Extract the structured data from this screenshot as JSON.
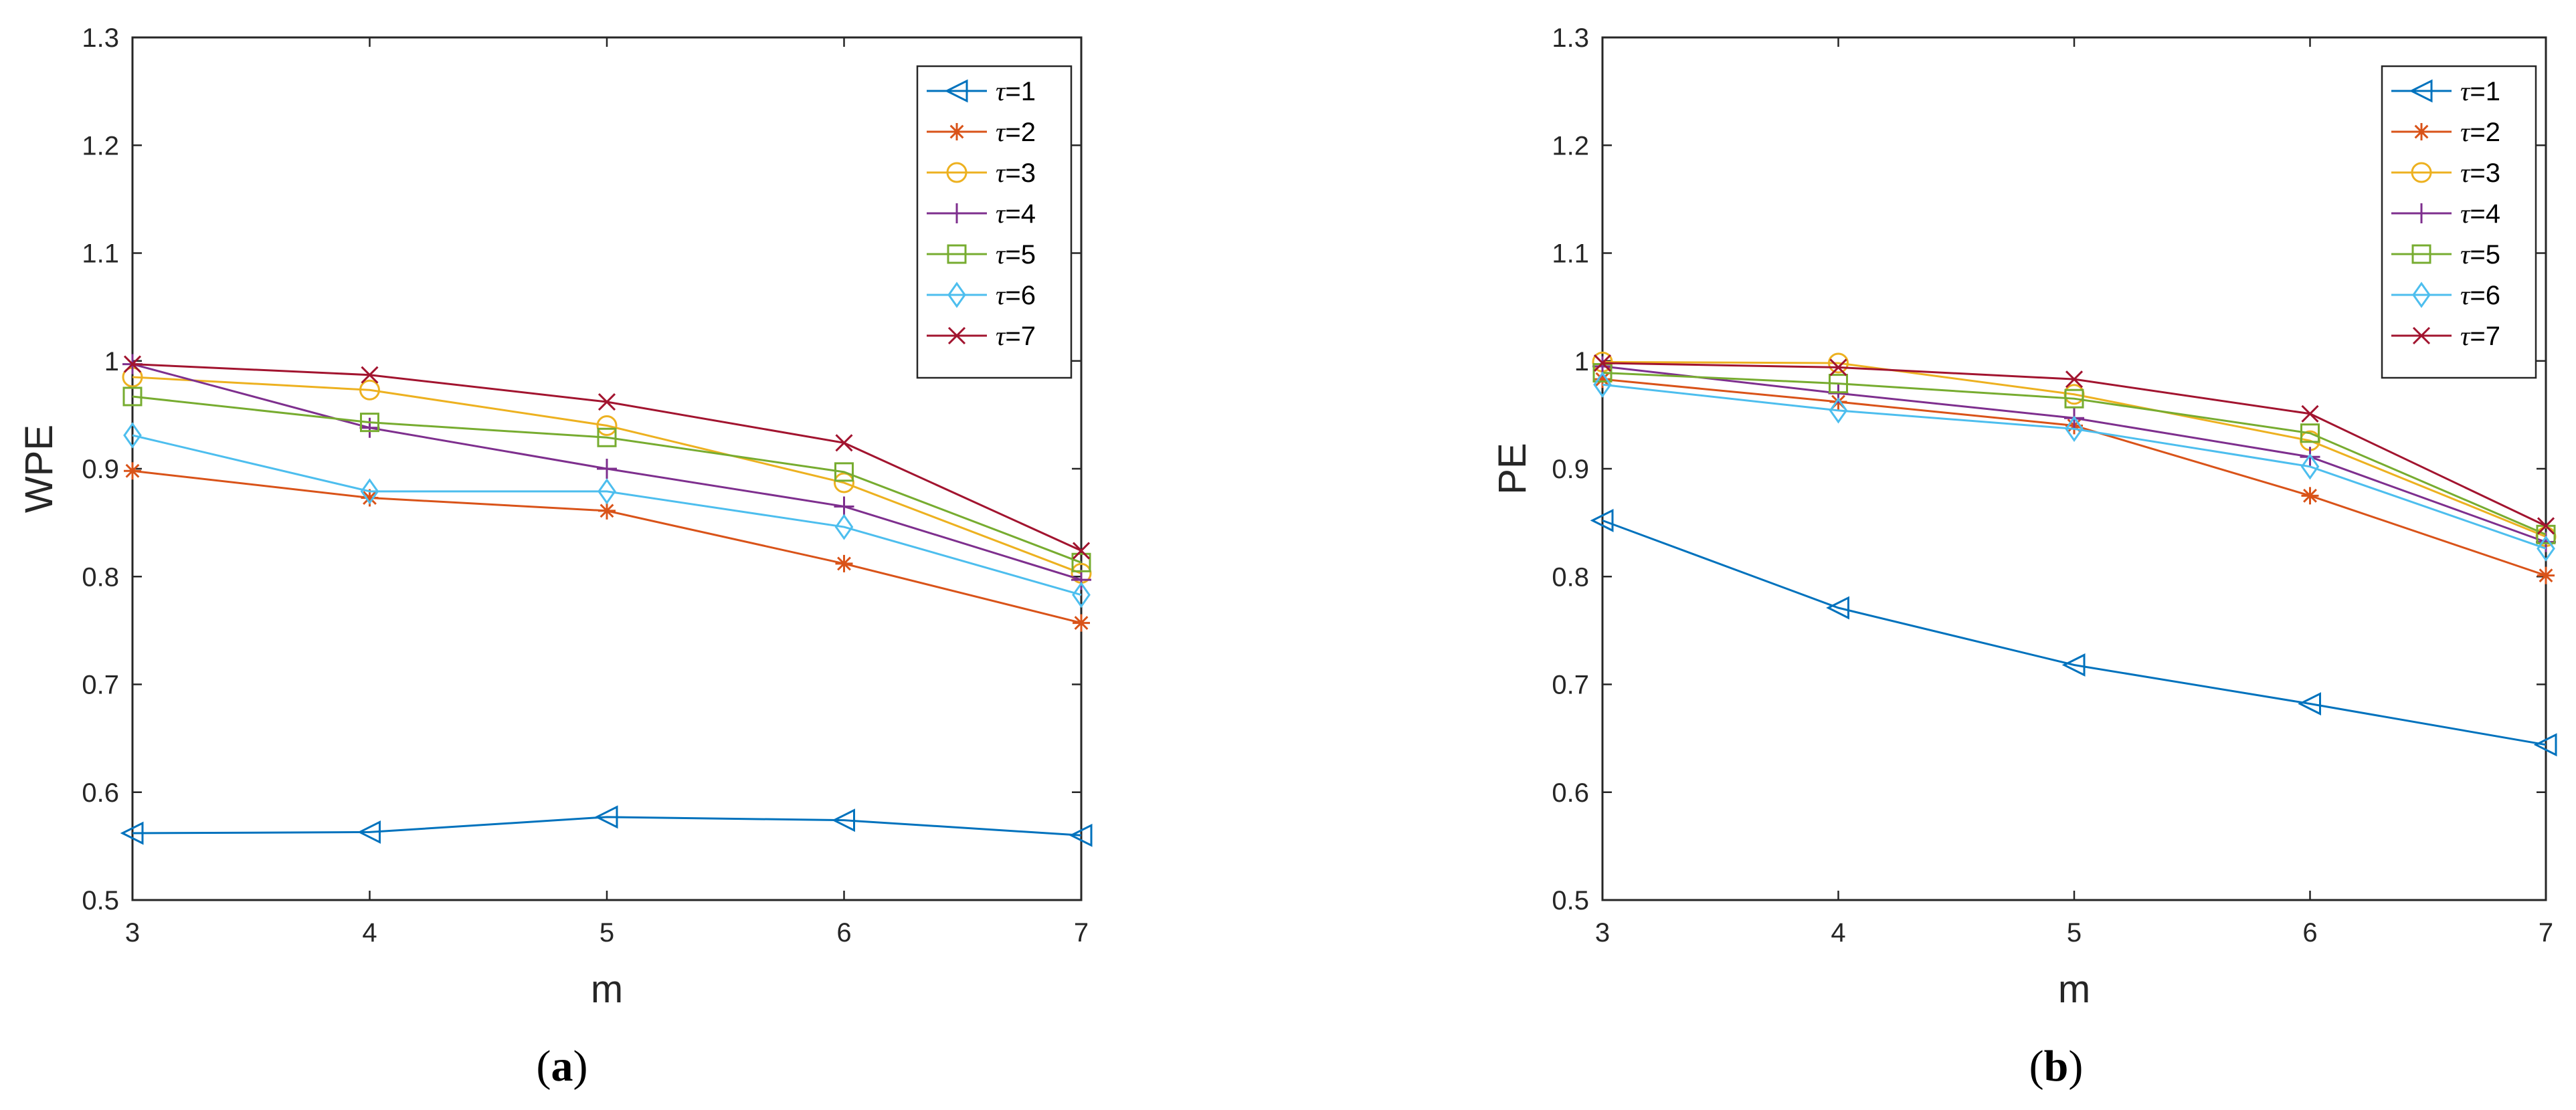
{
  "chart_data": [
    {
      "type": "line",
      "panel_label": "(a)",
      "panel_label_parts": {
        "open": "(",
        "letter": "a",
        "close": ")"
      },
      "title": "",
      "xlabel": "m",
      "ylabel": "WPE",
      "xlim": [
        3,
        7
      ],
      "ylim": [
        0.5,
        1.3
      ],
      "xticks": [
        3,
        4,
        5,
        6,
        7
      ],
      "xtick_labels": [
        "3",
        "4",
        "5",
        "6",
        "7"
      ],
      "yticks": [
        0.5,
        0.6,
        0.7,
        0.8,
        0.9,
        1.0,
        1.1,
        1.2,
        1.3
      ],
      "ytick_labels": [
        "0.5",
        "0.6",
        "0.7",
        "0.8",
        "0.9",
        "1",
        "1.1",
        "1.2",
        "1.3"
      ],
      "grid": false,
      "legend_position": "top-right",
      "x": [
        3,
        4,
        5,
        6,
        7
      ],
      "series": [
        {
          "name": "τ=1",
          "tau_symbol": "τ",
          "tau_value": "=1",
          "color": "#0072BD",
          "marker": "triangle-left",
          "values": [
            0.562,
            0.563,
            0.577,
            0.574,
            0.56
          ]
        },
        {
          "name": "τ=2",
          "tau_symbol": "τ",
          "tau_value": "=2",
          "color": "#D95319",
          "marker": "asterisk",
          "values": [
            0.898,
            0.873,
            0.861,
            0.812,
            0.757
          ]
        },
        {
          "name": "τ=3",
          "tau_symbol": "τ",
          "tau_value": "=3",
          "color": "#EDB120",
          "marker": "circle",
          "values": [
            0.985,
            0.973,
            0.94,
            0.887,
            0.803
          ]
        },
        {
          "name": "τ=4",
          "tau_symbol": "τ",
          "tau_value": "=4",
          "color": "#7E2F8E",
          "marker": "plus",
          "values": [
            0.997,
            0.938,
            0.9,
            0.865,
            0.797
          ]
        },
        {
          "name": "τ=5",
          "tau_symbol": "τ",
          "tau_value": "=5",
          "color": "#77AC30",
          "marker": "square",
          "values": [
            0.967,
            0.943,
            0.929,
            0.897,
            0.813
          ]
        },
        {
          "name": "τ=6",
          "tau_symbol": "τ",
          "tau_value": "=6",
          "color": "#4DBEEE",
          "marker": "diamond",
          "values": [
            0.931,
            0.879,
            0.879,
            0.846,
            0.783
          ]
        },
        {
          "name": "τ=7",
          "tau_symbol": "τ",
          "tau_value": "=7",
          "color": "#A2142F",
          "marker": "x",
          "values": [
            0.997,
            0.987,
            0.962,
            0.924,
            0.824
          ]
        }
      ]
    },
    {
      "type": "line",
      "panel_label": "(b)",
      "panel_label_parts": {
        "open": "(",
        "letter": "b",
        "close": ")"
      },
      "title": "",
      "xlabel": "m",
      "ylabel": "PE",
      "xlim": [
        3,
        7
      ],
      "ylim": [
        0.5,
        1.3
      ],
      "xticks": [
        3,
        4,
        5,
        6,
        7
      ],
      "xtick_labels": [
        "3",
        "4",
        "5",
        "6",
        "7"
      ],
      "yticks": [
        0.5,
        0.6,
        0.7,
        0.8,
        0.9,
        1.0,
        1.1,
        1.2,
        1.3
      ],
      "ytick_labels": [
        "0.5",
        "0.6",
        "0.7",
        "0.8",
        "0.9",
        "1",
        "1.1",
        "1.2",
        "1.3"
      ],
      "grid": false,
      "legend_position": "top-right",
      "x": [
        3,
        4,
        5,
        6,
        7
      ],
      "series": [
        {
          "name": "τ=1",
          "tau_symbol": "τ",
          "tau_value": "=1",
          "color": "#0072BD",
          "marker": "triangle-left",
          "values": [
            0.852,
            0.771,
            0.718,
            0.682,
            0.644
          ]
        },
        {
          "name": "τ=2",
          "tau_symbol": "τ",
          "tau_value": "=2",
          "color": "#D95319",
          "marker": "asterisk",
          "values": [
            0.983,
            0.962,
            0.94,
            0.875,
            0.801
          ]
        },
        {
          "name": "τ=3",
          "tau_symbol": "τ",
          "tau_value": "=3",
          "color": "#EDB120",
          "marker": "circle",
          "values": [
            0.999,
            0.998,
            0.969,
            0.926,
            0.837
          ]
        },
        {
          "name": "τ=4",
          "tau_symbol": "τ",
          "tau_value": "=4",
          "color": "#7E2F8E",
          "marker": "plus",
          "values": [
            0.995,
            0.97,
            0.947,
            0.911,
            0.832
          ]
        },
        {
          "name": "τ=5",
          "tau_symbol": "τ",
          "tau_value": "=5",
          "color": "#77AC30",
          "marker": "square",
          "values": [
            0.989,
            0.979,
            0.965,
            0.933,
            0.839
          ]
        },
        {
          "name": "τ=6",
          "tau_symbol": "τ",
          "tau_value": "=6",
          "color": "#4DBEEE",
          "marker": "diamond",
          "values": [
            0.978,
            0.954,
            0.937,
            0.902,
            0.826
          ]
        },
        {
          "name": "τ=7",
          "tau_symbol": "τ",
          "tau_value": "=7",
          "color": "#A2142F",
          "marker": "x",
          "values": [
            0.998,
            0.994,
            0.983,
            0.951,
            0.847
          ]
        }
      ]
    }
  ]
}
